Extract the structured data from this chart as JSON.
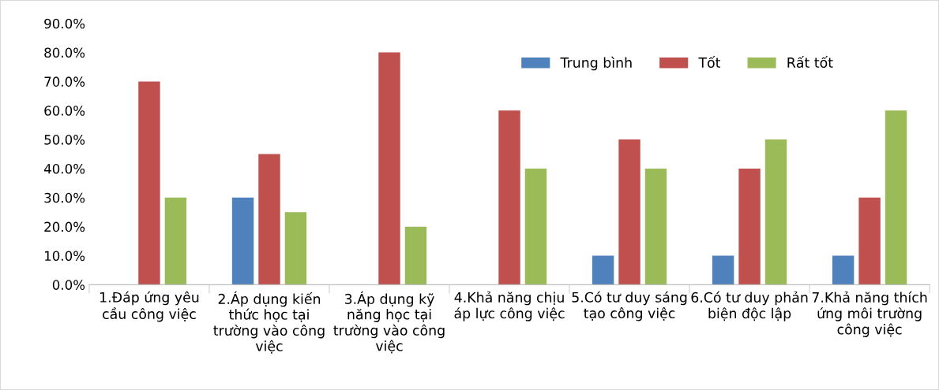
{
  "chart_data": {
    "type": "bar",
    "categories": [
      "1.Đáp ứng yêu cầu công việc",
      "2.Áp dụng kiến thức học tại trường vào công việc",
      "3.Áp dụng kỹ năng học tại trường vào công việc",
      "4.Khả năng chịu áp lực công việc",
      "5.Có tư duy sáng tạo công việc",
      "6.Có tư duy phản biện độc lập",
      "7.Khả năng thích ứng môi trường công việc"
    ],
    "series": [
      {
        "name": "Trung bình",
        "color": "#4f81bd",
        "values": [
          0,
          30,
          0,
          0,
          10,
          10,
          10
        ]
      },
      {
        "name": "Tốt",
        "color": "#c0504d",
        "values": [
          70,
          45,
          80,
          60,
          50,
          40,
          30
        ]
      },
      {
        "name": "Rất tốt",
        "color": "#9bbb59",
        "values": [
          30,
          25,
          20,
          40,
          40,
          50,
          60
        ]
      }
    ],
    "ylim": [
      0,
      90
    ],
    "yticks": [
      {
        "value": 0,
        "label": "0.0%"
      },
      {
        "value": 10,
        "label": "10.0%"
      },
      {
        "value": 20,
        "label": "20.0%"
      },
      {
        "value": 30,
        "label": "30.0%"
      },
      {
        "value": 40,
        "label": "40.0%"
      },
      {
        "value": 50,
        "label": "50.0%"
      },
      {
        "value": 60,
        "label": "60.0%"
      },
      {
        "value": 70,
        "label": "70.0%"
      },
      {
        "value": 80,
        "label": "80.0%"
      },
      {
        "value": 90,
        "label": "90.0%"
      }
    ],
    "grid": false,
    "legend": "top right"
  }
}
